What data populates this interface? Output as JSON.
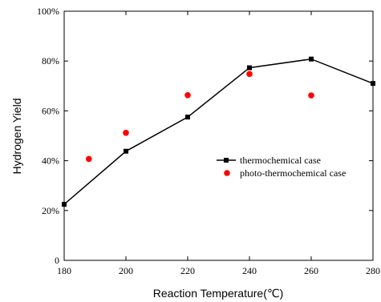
{
  "chart_data": {
    "type": "line",
    "xlabel": "Reaction Temperature(℃)",
    "ylabel": "Hydrogen Yield",
    "xlim": [
      180,
      280
    ],
    "ylim": [
      0,
      100
    ],
    "xticks": [
      180,
      200,
      220,
      240,
      260,
      280
    ],
    "yticks": [
      0,
      20,
      40,
      60,
      80,
      100
    ],
    "xtick_labels": [
      "180",
      "200",
      "220",
      "240",
      "260",
      "280"
    ],
    "ytick_labels": [
      "0",
      "20%",
      "40%",
      "60%",
      "80%",
      "100%"
    ],
    "grid": false,
    "legend_position": "right",
    "series": [
      {
        "name": "thermochemical case",
        "style": "line-with-square-markers",
        "color": "#000000",
        "x": [
          180,
          200,
          220,
          240,
          260,
          280
        ],
        "y": [
          22.5,
          43.8,
          57.5,
          77.3,
          80.8,
          71.0
        ]
      },
      {
        "name": "photo-thermochemical case",
        "style": "scatter-circle",
        "color": "#ff0000",
        "x": [
          188,
          200,
          220,
          240,
          260
        ],
        "y": [
          40.7,
          51.2,
          66.3,
          74.8,
          66.2
        ]
      }
    ]
  }
}
